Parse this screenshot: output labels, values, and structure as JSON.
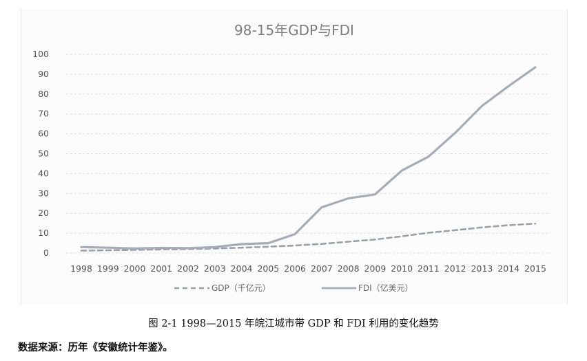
{
  "chart_data": {
    "type": "line",
    "title": "98-15年GDP与FDI",
    "x": [
      "1998",
      "1999",
      "2000",
      "2001",
      "2002",
      "2003",
      "2004",
      "2005",
      "2006",
      "2007",
      "2008",
      "2009",
      "2010",
      "2011",
      "2012",
      "2013",
      "2014",
      "2015"
    ],
    "series": [
      {
        "name": "GDP（千亿元）",
        "color": "#9aa0aa",
        "dash": "dashed",
        "values": [
          1.2,
          1.4,
          1.6,
          1.8,
          2.0,
          2.3,
          2.7,
          3.2,
          3.8,
          4.6,
          5.7,
          6.8,
          8.4,
          10.2,
          11.5,
          12.9,
          14.0,
          14.8
        ]
      },
      {
        "name": "FDI（亿美元）",
        "color": "#a6acb6",
        "dash": "solid",
        "values": [
          3.0,
          2.7,
          2.3,
          2.6,
          2.5,
          3.0,
          4.5,
          5.0,
          9.5,
          23.0,
          27.5,
          29.5,
          41.5,
          48.5,
          60.5,
          74.0,
          84.0,
          93.5
        ]
      }
    ],
    "ylim": [
      0,
      100
    ],
    "yticks": [
      "0",
      "10",
      "20",
      "30",
      "40",
      "50",
      "60",
      "70",
      "80",
      "90",
      "100"
    ],
    "grid": true,
    "legend_position": "bottom"
  },
  "caption": "图 2-1 1998—2015 年皖江城市带 GDP 和 FDI 利用的变化趋势",
  "source_note": "数据来源：历年《安徽统计年鉴》。"
}
